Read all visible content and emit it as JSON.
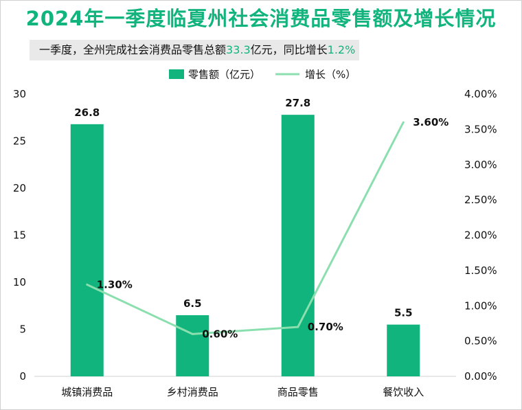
{
  "title": "2024年一季度临夏州社会消费品零售额及增长情况",
  "subtitle": {
    "prefix": "一季度，全州完成社会消费品零售总额",
    "total": "33.3",
    "middle": "亿元，同比增长",
    "growth": "1.2%"
  },
  "colors": {
    "bar": "#11b47c",
    "line": "#8bdfae",
    "accent": "#11b47c"
  },
  "chart_data": {
    "type": "bar",
    "categories": [
      "城镇消费品",
      "乡村消费品",
      "商品零售",
      "餐饮收入"
    ],
    "series": [
      {
        "name": "零售额（亿元）",
        "type": "bar",
        "axis": "left",
        "values": [
          26.8,
          6.5,
          27.8,
          5.5
        ],
        "labels": [
          "26.8",
          "6.5",
          "27.8",
          "5.5"
        ]
      },
      {
        "name": "增长（%）",
        "type": "line",
        "axis": "right",
        "values": [
          1.3,
          0.6,
          0.7,
          3.6
        ],
        "labels": [
          "1.30%",
          "0.60%",
          "0.70%",
          "3.60%"
        ]
      }
    ],
    "y_left": {
      "min": 0,
      "max": 30,
      "ticks": [
        "0",
        "5",
        "10",
        "15",
        "20",
        "25",
        "30"
      ]
    },
    "y_right": {
      "min": 0,
      "max": 4,
      "ticks": [
        "0.00%",
        "0.50%",
        "1.00%",
        "1.50%",
        "2.00%",
        "2.50%",
        "3.00%",
        "3.50%",
        "4.00%"
      ]
    },
    "legend": {
      "position": "top"
    },
    "grid": false
  }
}
